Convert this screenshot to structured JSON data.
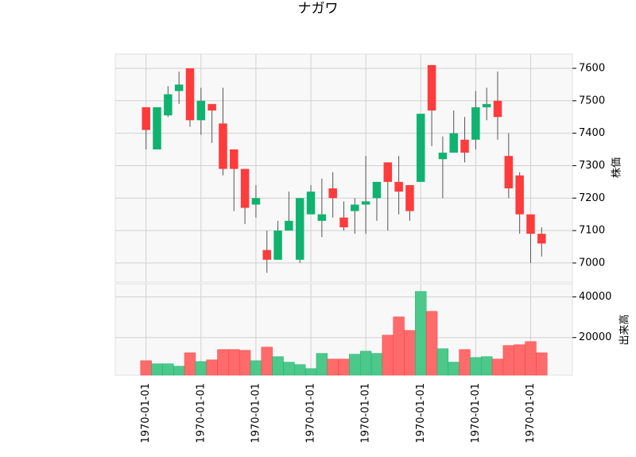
{
  "chart_data": {
    "type": "candlestick",
    "title": "ナガワ",
    "ylabel": "株価",
    "volume_label": "出来高",
    "categories": [
      "1970-01-01",
      null,
      null,
      null,
      null,
      "1970-01-01",
      null,
      null,
      null,
      null,
      "1970-01-01",
      null,
      null,
      null,
      null,
      "1970-01-01",
      null,
      null,
      null,
      null,
      "1970-01-01",
      null,
      null,
      null,
      null,
      "1970-01-01",
      null,
      null,
      null,
      null,
      "1970-01-01",
      null,
      null,
      null,
      null,
      "1970-01-01",
      null
    ],
    "open": [
      7480,
      7350,
      7455,
      7530,
      7600,
      7440,
      7490,
      7430,
      7350,
      7290,
      7180,
      7040,
      7010,
      7100,
      7010,
      7150,
      7130,
      7230,
      7140,
      7160,
      7180,
      7200,
      7310,
      7250,
      7240,
      7250,
      7610,
      7320,
      7340,
      7380,
      7380,
      7480,
      7500,
      7330,
      7270,
      7150,
      7090
    ],
    "high": [
      7480,
      7480,
      7545,
      7590,
      7600,
      7540,
      7490,
      7540,
      7350,
      7290,
      7240,
      7100,
      7130,
      7220,
      7200,
      7240,
      7260,
      7280,
      7190,
      7200,
      7330,
      7250,
      7310,
      7330,
      7240,
      7460,
      7610,
      7390,
      7470,
      7450,
      7530,
      7540,
      7590,
      7400,
      7280,
      7150,
      7110
    ],
    "low": [
      7350,
      7350,
      7450,
      7490,
      7420,
      7395,
      7370,
      7270,
      7160,
      7120,
      7140,
      6970,
      7010,
      7100,
      7000,
      7150,
      7080,
      7140,
      7100,
      7090,
      7090,
      7130,
      7100,
      7150,
      7130,
      7250,
      7360,
      7200,
      7340,
      7310,
      7350,
      7440,
      7380,
      7200,
      7090,
      7000,
      7020
    ],
    "close": [
      7410,
      7480,
      7520,
      7550,
      7440,
      7500,
      7470,
      7290,
      7290,
      7170,
      7200,
      7010,
      7100,
      7130,
      7200,
      7220,
      7150,
      7200,
      7110,
      7180,
      7190,
      7250,
      7250,
      7220,
      7160,
      7460,
      7470,
      7340,
      7400,
      7340,
      7480,
      7490,
      7450,
      7230,
      7150,
      7090,
      7060
    ],
    "volume": [
      8600,
      7100,
      7100,
      5900,
      12500,
      8200,
      9000,
      14100,
      14100,
      13700,
      8600,
      15300,
      10600,
      7900,
      6700,
      4700,
      12200,
      9400,
      9400,
      11800,
      13300,
      12200,
      21200,
      30200,
      23500,
      42700,
      32900,
      14500,
      7900,
      14100,
      10200,
      10600,
      9400,
      16100,
      16500,
      18000,
      12500
    ],
    "up_color": "#0fb36f",
    "down_color": "#ff3b3b",
    "up_volume_color": "#4cc88a",
    "down_volume_color": "#ff6b6b",
    "xlim": [
      -2.8,
      38.8
    ],
    "ylim": [
      6941,
      7644
    ],
    "yticks": [
      7000,
      7100,
      7200,
      7300,
      7400,
      7500,
      7600
    ],
    "volume_ylim": [
      1500,
      46500
    ],
    "volume_yticks": [
      20000,
      40000
    ],
    "grid": true
  }
}
